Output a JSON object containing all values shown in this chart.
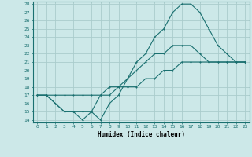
{
  "xlabel": "Humidex (Indice chaleur)",
  "bg_color": "#cce8e8",
  "grid_color": "#aacccc",
  "line_color": "#1a7070",
  "xlim": [
    -0.5,
    23.5
  ],
  "ylim": [
    13.7,
    28.3
  ],
  "x_ticks": [
    0,
    1,
    2,
    3,
    4,
    5,
    6,
    7,
    8,
    9,
    10,
    11,
    12,
    13,
    14,
    15,
    16,
    17,
    18,
    19,
    20,
    21,
    22,
    23
  ],
  "y_ticks": [
    14,
    15,
    16,
    17,
    18,
    19,
    20,
    21,
    22,
    23,
    24,
    25,
    26,
    27,
    28
  ],
  "line1_x": [
    0,
    1,
    2,
    3,
    4,
    5,
    6,
    7,
    8,
    9,
    10,
    11,
    12,
    13,
    14,
    15,
    16,
    17,
    18,
    19,
    20,
    21,
    22,
    23
  ],
  "line1_y": [
    17,
    17,
    16,
    15,
    15,
    15,
    15,
    14,
    16,
    17,
    19,
    21,
    22,
    24,
    25,
    27,
    28,
    28,
    27,
    25,
    23,
    22,
    21,
    21
  ],
  "line2_x": [
    0,
    1,
    2,
    3,
    4,
    5,
    6,
    7,
    8,
    9,
    10,
    11,
    12,
    13,
    14,
    15,
    16,
    17,
    18,
    19,
    20,
    21,
    22,
    23
  ],
  "line2_y": [
    17,
    17,
    16,
    15,
    15,
    14,
    15,
    17,
    18,
    18,
    19,
    20,
    21,
    22,
    22,
    23,
    23,
    23,
    22,
    21,
    21,
    21,
    21,
    21
  ],
  "line3_x": [
    0,
    1,
    2,
    3,
    4,
    5,
    6,
    7,
    8,
    9,
    10,
    11,
    12,
    13,
    14,
    15,
    16,
    17,
    18,
    19,
    20,
    21,
    22,
    23
  ],
  "line3_y": [
    17,
    17,
    17,
    17,
    17,
    17,
    17,
    17,
    17,
    18,
    18,
    18,
    19,
    19,
    20,
    20,
    21,
    21,
    21,
    21,
    21,
    21,
    21,
    21
  ]
}
